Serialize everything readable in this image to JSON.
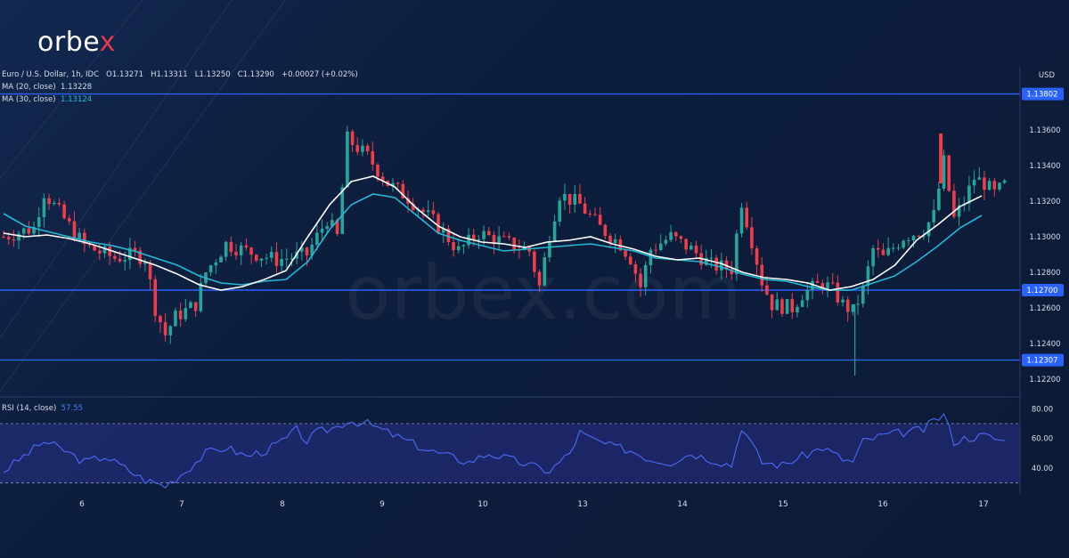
{
  "brand": {
    "name_main": "orbe",
    "name_x": "x",
    "watermark": "orbex.com"
  },
  "legend": {
    "symbol": "Euro / U.S. Dollar, 1h, IDC",
    "open": "O1.13271",
    "high": "H1.13311",
    "low": "L1.13250",
    "close": "C1.13290",
    "change": "+0.00027 (+0.02%)",
    "ma20_label": "MA (20, close)",
    "ma20_value": "1.13228",
    "ma30_label": "MA (30, close)",
    "ma30_value": "1.13124",
    "rsi_label": "RSI (14, close)",
    "rsi_value": "57.55"
  },
  "colors": {
    "up": "#26a69a",
    "down": "#ef3e4a",
    "ma20": "#ffffff",
    "ma30": "#22b8d6",
    "level": "#2962ff",
    "rsi": "#4a6cf7",
    "bg": "#0d1e3d"
  },
  "chart_data": {
    "type": "candlestick",
    "title": "Euro / U.S. Dollar, 1h, IDC",
    "currency": "USD",
    "price_axis": {
      "min": 1.121,
      "max": 1.138,
      "ticks": [
        1.122,
        1.124,
        1.126,
        1.128,
        1.13,
        1.132,
        1.134,
        1.136
      ],
      "tick_labels": [
        "1.12200",
        "1.12400",
        "1.12600",
        "1.12800",
        "1.13000",
        "1.13200",
        "1.13400",
        "1.13600"
      ]
    },
    "x_labels": [
      "6",
      "7",
      "8",
      "9",
      "10",
      "13",
      "14",
      "15",
      "16",
      "17"
    ],
    "horizontal_levels": [
      {
        "value": 1.13802,
        "label": "1.13802"
      },
      {
        "value": 1.127,
        "label": "1.12700"
      },
      {
        "value": 1.12307,
        "label": "1.12307"
      }
    ],
    "ma20_curve": [
      [
        0,
        1.1302
      ],
      [
        1,
        1.13
      ],
      [
        2,
        1.1301
      ],
      [
        3,
        1.1299
      ],
      [
        4,
        1.1296
      ],
      [
        5,
        1.1292
      ],
      [
        6,
        1.1288
      ],
      [
        7,
        1.1284
      ],
      [
        8,
        1.1279
      ],
      [
        9,
        1.1273
      ],
      [
        10,
        1.127
      ],
      [
        11,
        1.1272
      ],
      [
        12,
        1.1276
      ],
      [
        13,
        1.1281
      ],
      [
        14,
        1.13
      ],
      [
        15,
        1.1318
      ],
      [
        16,
        1.1331
      ],
      [
        17,
        1.1334
      ],
      [
        18,
        1.1328
      ],
      [
        19,
        1.1316
      ],
      [
        20,
        1.1306
      ],
      [
        21,
        1.13
      ],
      [
        22,
        1.1297
      ],
      [
        23,
        1.1296
      ],
      [
        24,
        1.1294
      ],
      [
        25,
        1.1297
      ],
      [
        26,
        1.1298
      ],
      [
        27,
        1.13
      ],
      [
        28,
        1.1296
      ],
      [
        29,
        1.1293
      ],
      [
        30,
        1.1289
      ],
      [
        31,
        1.1287
      ],
      [
        32,
        1.1288
      ],
      [
        33,
        1.1285
      ],
      [
        34,
        1.128
      ],
      [
        35,
        1.1277
      ],
      [
        36,
        1.1276
      ],
      [
        37,
        1.1274
      ],
      [
        38,
        1.127
      ],
      [
        39,
        1.1272
      ],
      [
        40,
        1.1276
      ],
      [
        41,
        1.1284
      ],
      [
        42,
        1.1298
      ],
      [
        43,
        1.1307
      ],
      [
        44,
        1.1317
      ],
      [
        45,
        1.1323
      ]
    ],
    "ma30_curve": [
      [
        0,
        1.1313
      ],
      [
        1,
        1.1306
      ],
      [
        2,
        1.1303
      ],
      [
        3,
        1.13
      ],
      [
        4,
        1.1297
      ],
      [
        5,
        1.1295
      ],
      [
        6,
        1.1292
      ],
      [
        7,
        1.1288
      ],
      [
        8,
        1.1284
      ],
      [
        9,
        1.1278
      ],
      [
        10,
        1.1274
      ],
      [
        11,
        1.1273
      ],
      [
        12,
        1.1275
      ],
      [
        13,
        1.1276
      ],
      [
        14,
        1.1286
      ],
      [
        15,
        1.1304
      ],
      [
        16,
        1.1318
      ],
      [
        17,
        1.1324
      ],
      [
        18,
        1.1322
      ],
      [
        19,
        1.1312
      ],
      [
        20,
        1.1302
      ],
      [
        21,
        1.1298
      ],
      [
        22,
        1.1295
      ],
      [
        23,
        1.1292
      ],
      [
        24,
        1.1293
      ],
      [
        25,
        1.1294
      ],
      [
        26,
        1.1295
      ],
      [
        27,
        1.1296
      ],
      [
        28,
        1.1294
      ],
      [
        29,
        1.1292
      ],
      [
        30,
        1.1288
      ],
      [
        31,
        1.1287
      ],
      [
        32,
        1.1286
      ],
      [
        33,
        1.1283
      ],
      [
        34,
        1.1279
      ],
      [
        35,
        1.1276
      ],
      [
        36,
        1.1275
      ],
      [
        37,
        1.1272
      ],
      [
        38,
        1.127
      ],
      [
        39,
        1.127
      ],
      [
        40,
        1.1274
      ],
      [
        41,
        1.1278
      ],
      [
        42,
        1.1286
      ],
      [
        43,
        1.1295
      ],
      [
        44,
        1.1305
      ],
      [
        45,
        1.1312
      ]
    ],
    "candle_path": [
      [
        0,
        1.13
      ],
      [
        3,
        1.1305
      ],
      [
        4,
        1.1325
      ],
      [
        6,
        1.131
      ],
      [
        8,
        1.1295
      ],
      [
        11,
        1.1288
      ],
      [
        13,
        1.129
      ],
      [
        14,
        1.1288
      ],
      [
        15,
        1.126
      ],
      [
        16,
        1.1245
      ],
      [
        17,
        1.1255
      ],
      [
        19,
        1.1262
      ],
      [
        20,
        1.128
      ],
      [
        22,
        1.1296
      ],
      [
        24,
        1.1292
      ],
      [
        27,
        1.1287
      ],
      [
        30,
        1.129
      ],
      [
        32,
        1.131
      ],
      [
        33,
        1.13
      ],
      [
        34,
        1.1355
      ],
      [
        36,
        1.1345
      ],
      [
        38,
        1.133
      ],
      [
        40,
        1.1322
      ],
      [
        43,
        1.1306
      ],
      [
        45,
        1.1292
      ],
      [
        47,
        1.1302
      ],
      [
        50,
        1.1296
      ],
      [
        52,
        1.1292
      ],
      [
        53,
        1.1272
      ],
      [
        54,
        1.1302
      ],
      [
        55,
        1.1324
      ],
      [
        57,
        1.1318
      ],
      [
        59,
        1.1305
      ],
      [
        61,
        1.1296
      ],
      [
        62,
        1.1288
      ],
      [
        63,
        1.1272
      ],
      [
        64,
        1.1293
      ],
      [
        66,
        1.13
      ],
      [
        68,
        1.1293
      ],
      [
        70,
        1.1284
      ],
      [
        72,
        1.1282
      ],
      [
        73,
        1.132
      ],
      [
        74,
        1.1298
      ],
      [
        75,
        1.1275
      ],
      [
        76,
        1.1262
      ],
      [
        78,
        1.126
      ],
      [
        79,
        1.1268
      ],
      [
        81,
        1.1274
      ],
      [
        82,
        1.127
      ],
      [
        83,
        1.1262
      ],
      [
        84,
        1.1258
      ],
      [
        85,
        1.127
      ],
      [
        86,
        1.1293
      ],
      [
        87,
        1.1288
      ],
      [
        89,
        1.13
      ],
      [
        91,
        1.1304
      ],
      [
        92,
        1.1312
      ],
      [
        93,
        1.1342
      ],
      [
        94,
        1.131
      ],
      [
        95,
        1.132
      ],
      [
        96,
        1.1333
      ],
      [
        97,
        1.133
      ],
      [
        98,
        1.1324
      ],
      [
        99,
        1.1329
      ]
    ],
    "rsi": {
      "label": "RSI (14, close)",
      "value": 57.55,
      "axis": {
        "min": 25,
        "max": 85,
        "ticks": [
          40,
          60,
          80
        ],
        "tick_labels": [
          "40.00",
          "60.00",
          "80.00"
        ]
      },
      "band": [
        30,
        70
      ],
      "series": [
        [
          0,
          38
        ],
        [
          2,
          48
        ],
        [
          4,
          58
        ],
        [
          6,
          52
        ],
        [
          8,
          44
        ],
        [
          10,
          48
        ],
        [
          12,
          40
        ],
        [
          14,
          32
        ],
        [
          16,
          28
        ],
        [
          18,
          38
        ],
        [
          20,
          50
        ],
        [
          22,
          54
        ],
        [
          24,
          48
        ],
        [
          26,
          52
        ],
        [
          28,
          60
        ],
        [
          29,
          66
        ],
        [
          30,
          58
        ],
        [
          31,
          64
        ],
        [
          33,
          68
        ],
        [
          34,
          72
        ],
        [
          36,
          70
        ],
        [
          38,
          64
        ],
        [
          40,
          58
        ],
        [
          42,
          52
        ],
        [
          44,
          48
        ],
        [
          46,
          44
        ],
        [
          48,
          50
        ],
        [
          50,
          46
        ],
        [
          52,
          42
        ],
        [
          54,
          38
        ],
        [
          56,
          50
        ],
        [
          57,
          64
        ],
        [
          58,
          60
        ],
        [
          60,
          55
        ],
        [
          62,
          52
        ],
        [
          64,
          46
        ],
        [
          66,
          44
        ],
        [
          68,
          50
        ],
        [
          70,
          46
        ],
        [
          72,
          42
        ],
        [
          73,
          68
        ],
        [
          74,
          56
        ],
        [
          75,
          44
        ],
        [
          77,
          42
        ],
        [
          79,
          48
        ],
        [
          81,
          54
        ],
        [
          83,
          46
        ],
        [
          84,
          44
        ],
        [
          85,
          58
        ],
        [
          87,
          62
        ],
        [
          89,
          64
        ],
        [
          91,
          66
        ],
        [
          92,
          72
        ],
        [
          93,
          76
        ],
        [
          94,
          58
        ],
        [
          95,
          60
        ],
        [
          97,
          62
        ],
        [
          99,
          58
        ]
      ]
    }
  }
}
